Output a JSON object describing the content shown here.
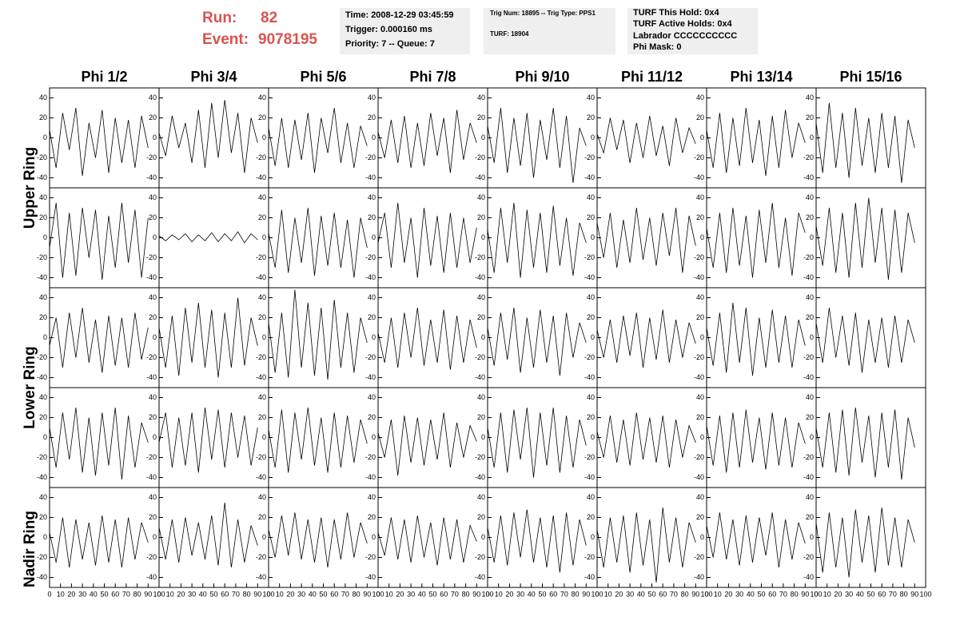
{
  "header": {
    "run_label": "Run:",
    "run": "82",
    "event_label": "Event:",
    "event": "9078195",
    "info_box": [
      "Time: 2008-12-29 03:45:59",
      "Trigger: 0.000160 ms",
      "Priority: 7 -- Queue: 7"
    ],
    "trig_box": [
      "Trig Num: 18895 -- Trig Type: PPS1",
      "TURF: 18904"
    ],
    "turf_box": [
      "TURF This Hold: 0x4",
      "TURF Active Holds: 0x4",
      "Labrador CCCCCCCCCC",
      "Phi Mask: 0"
    ]
  },
  "chart_data": {
    "type": "line",
    "columns": [
      "Phi 1/2",
      "Phi 3/4",
      "Phi 5/6",
      "Phi 7/8",
      "Phi 9/10",
      "Phi 11/12",
      "Phi 13/14",
      "Phi 15/16"
    ],
    "ring_labels": [
      "Upper Ring",
      "Lower Ring",
      "Nadir Ring"
    ],
    "x": [
      0,
      6,
      12,
      18,
      24,
      30,
      36,
      42,
      48,
      54,
      60,
      66,
      72,
      78,
      84,
      90
    ],
    "xlim": [
      0,
      100
    ],
    "ylim": [
      -50,
      50
    ],
    "xticks": [
      0,
      10,
      20,
      30,
      40,
      50,
      60,
      70,
      80,
      90,
      100
    ],
    "yticks": [
      -40,
      -20,
      0,
      20,
      40
    ],
    "color": "#000000",
    "panels": [
      [
        8,
        -30,
        25,
        -12,
        30,
        -38,
        15,
        -20,
        28,
        -35,
        20,
        -25,
        18,
        -30,
        22,
        -10
      ],
      [
        5,
        -18,
        22,
        -10,
        15,
        -25,
        28,
        -30,
        35,
        -20,
        38,
        -15,
        25,
        -35,
        20,
        -5
      ],
      [
        10,
        -28,
        20,
        -30,
        18,
        -22,
        25,
        -35,
        20,
        -15,
        30,
        -25,
        15,
        -30,
        12,
        -8
      ],
      [
        6,
        -20,
        18,
        -25,
        22,
        -30,
        15,
        -28,
        25,
        -18,
        20,
        -35,
        28,
        -22,
        15,
        -5
      ],
      [
        12,
        -25,
        30,
        -35,
        20,
        -28,
        25,
        -40,
        18,
        -22,
        30,
        -30,
        22,
        -45,
        10,
        -8
      ],
      [
        4,
        -15,
        20,
        -12,
        18,
        -25,
        15,
        -20,
        22,
        -18,
        12,
        -28,
        20,
        -15,
        10,
        -6
      ],
      [
        8,
        -30,
        25,
        -35,
        20,
        -28,
        30,
        -25,
        18,
        -38,
        22,
        -30,
        28,
        -20,
        15,
        -5
      ],
      [
        15,
        -35,
        35,
        -30,
        25,
        -40,
        30,
        -28,
        20,
        -35,
        25,
        -30,
        22,
        -45,
        18,
        -10
      ],
      [
        -10,
        35,
        -40,
        25,
        -38,
        30,
        -20,
        28,
        -42,
        22,
        -30,
        35,
        -25,
        28,
        -40,
        20
      ],
      [
        2,
        -3,
        3,
        -2,
        4,
        -4,
        3,
        -3,
        5,
        -4,
        4,
        -3,
        6,
        -5,
        4,
        -2
      ],
      [
        5,
        -30,
        28,
        -35,
        20,
        -25,
        30,
        -38,
        22,
        -28,
        25,
        -30,
        18,
        -40,
        20,
        -10
      ],
      [
        -5,
        25,
        -30,
        35,
        -25,
        20,
        -40,
        30,
        -28,
        22,
        -35,
        25,
        -30,
        20,
        -25,
        10
      ],
      [
        8,
        -35,
        30,
        -25,
        35,
        -40,
        28,
        -30,
        25,
        -35,
        32,
        -28,
        20,
        -38,
        15,
        -5
      ],
      [
        15,
        -20,
        25,
        -30,
        18,
        -25,
        30,
        -22,
        20,
        -28,
        25,
        -18,
        30,
        -35,
        22,
        -8
      ],
      [
        10,
        -30,
        25,
        -35,
        30,
        -28,
        22,
        -40,
        28,
        -25,
        35,
        -30,
        20,
        -38,
        25,
        5
      ],
      [
        12,
        -28,
        30,
        -35,
        25,
        -40,
        35,
        -30,
        40,
        -25,
        30,
        -42,
        28,
        -35,
        25,
        -5
      ],
      [
        -8,
        20,
        -30,
        25,
        -20,
        30,
        -25,
        18,
        -35,
        22,
        -28,
        20,
        -30,
        25,
        -22,
        10
      ],
      [
        10,
        -30,
        22,
        -38,
        30,
        -25,
        35,
        -30,
        28,
        -40,
        25,
        -30,
        40,
        -28,
        20,
        -8
      ],
      [
        15,
        -35,
        25,
        -40,
        48,
        -30,
        35,
        -38,
        30,
        -42,
        38,
        -30,
        25,
        -35,
        20,
        -5
      ],
      [
        5,
        -25,
        20,
        -30,
        25,
        -20,
        30,
        -28,
        18,
        -25,
        28,
        -32,
        22,
        -25,
        18,
        -10
      ],
      [
        10,
        -28,
        25,
        -22,
        30,
        -35,
        20,
        -30,
        28,
        -25,
        22,
        -38,
        25,
        -20,
        15,
        -5
      ],
      [
        8,
        -20,
        18,
        -25,
        22,
        -18,
        25,
        -30,
        20,
        -22,
        28,
        -25,
        18,
        -20,
        15,
        -6
      ],
      [
        10,
        -28,
        25,
        -35,
        35,
        -25,
        30,
        -38,
        20,
        -30,
        28,
        -25,
        22,
        -30,
        18,
        -8
      ],
      [
        15,
        -25,
        30,
        -20,
        22,
        -28,
        25,
        -35,
        18,
        -25,
        20,
        -30,
        22,
        -25,
        18,
        -5
      ],
      [
        10,
        -30,
        25,
        -22,
        30,
        -35,
        20,
        -38,
        25,
        -28,
        30,
        -42,
        22,
        -30,
        15,
        -5
      ],
      [
        -5,
        25,
        -30,
        20,
        -28,
        25,
        -35,
        30,
        -22,
        28,
        -30,
        25,
        -20,
        22,
        -28,
        10
      ],
      [
        8,
        -30,
        28,
        -35,
        25,
        -22,
        30,
        -28,
        20,
        -35,
        25,
        -30,
        22,
        -25,
        18,
        -6
      ],
      [
        5,
        -20,
        18,
        -38,
        22,
        -25,
        20,
        -28,
        18,
        -22,
        25,
        -30,
        15,
        -20,
        12,
        -4
      ],
      [
        10,
        -30,
        25,
        -35,
        28,
        -22,
        30,
        -40,
        25,
        -28,
        30,
        -35,
        22,
        -30,
        18,
        -8
      ],
      [
        6,
        -20,
        22,
        -25,
        18,
        -28,
        25,
        -22,
        20,
        -25,
        22,
        -30,
        18,
        -20,
        12,
        -5
      ],
      [
        12,
        -28,
        22,
        -35,
        25,
        -30,
        28,
        -25,
        20,
        -32,
        25,
        -28,
        20,
        -30,
        15,
        -6
      ],
      [
        10,
        -30,
        25,
        -35,
        28,
        -38,
        30,
        -25,
        22,
        -40,
        25,
        -30,
        28,
        -42,
        20,
        -10
      ],
      [
        5,
        -25,
        20,
        -30,
        18,
        -22,
        15,
        -28,
        22,
        -25,
        18,
        -30,
        20,
        -22,
        15,
        -5
      ],
      [
        10,
        -22,
        18,
        -25,
        20,
        -18,
        15,
        -22,
        22,
        -28,
        35,
        -30,
        18,
        -25,
        12,
        -8
      ],
      [
        8,
        -20,
        22,
        -18,
        25,
        -22,
        18,
        -25,
        20,
        -30,
        18,
        -22,
        25,
        -20,
        15,
        -6
      ],
      [
        5,
        -18,
        20,
        -22,
        18,
        -25,
        22,
        -20,
        15,
        -28,
        20,
        -22,
        18,
        -25,
        12,
        -4
      ],
      [
        10,
        -25,
        22,
        -28,
        25,
        -20,
        28,
        -25,
        20,
        -30,
        22,
        -35,
        25,
        -28,
        18,
        -8
      ],
      [
        8,
        -30,
        20,
        -25,
        22,
        -35,
        25,
        -28,
        18,
        -45,
        30,
        -25,
        20,
        -30,
        15,
        -5
      ],
      [
        12,
        -20,
        25,
        -22,
        18,
        -28,
        22,
        -25,
        20,
        -18,
        25,
        -30,
        18,
        -22,
        15,
        -6
      ],
      [
        15,
        -35,
        25,
        -30,
        20,
        -40,
        28,
        -25,
        22,
        -35,
        30,
        -28,
        20,
        -30,
        18,
        -5
      ]
    ]
  }
}
